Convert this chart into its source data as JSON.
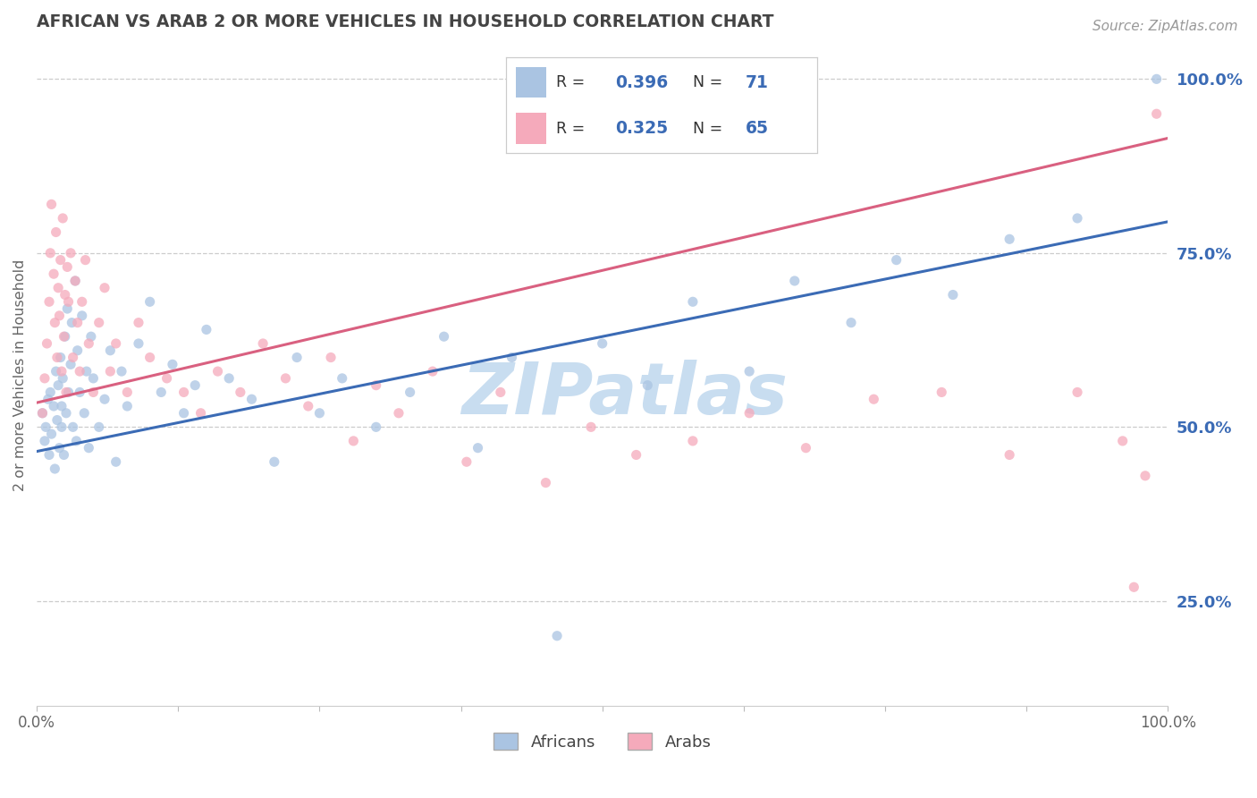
{
  "title": "AFRICAN VS ARAB 2 OR MORE VEHICLES IN HOUSEHOLD CORRELATION CHART",
  "source": "Source: ZipAtlas.com",
  "ylabel": "2 or more Vehicles in Household",
  "legend_r_african": "0.396",
  "legend_n_african": "71",
  "legend_r_arab": "0.325",
  "legend_n_arab": "65",
  "bottom_legend": [
    "Africans",
    "Arabs"
  ],
  "african_color": "#aac4e2",
  "arab_color": "#f5aabb",
  "african_line_color": "#3b6bb5",
  "arab_line_color": "#d96080",
  "african_trend_x0": 0.0,
  "african_trend_x1": 1.0,
  "african_trend_y0": 0.465,
  "african_trend_y1": 0.795,
  "arab_trend_x0": 0.0,
  "arab_trend_x1": 1.0,
  "arab_trend_y0": 0.535,
  "arab_trend_y1": 0.915,
  "xlim": [
    0.0,
    1.0
  ],
  "ylim": [
    0.1,
    1.05
  ],
  "bg_color": "#ffffff",
  "grid_color": "#cccccc",
  "title_color": "#444444",
  "right_label_color": "#3b6bb5",
  "marker_size": 65,
  "marker_alpha": 0.75,
  "watermark_text": "ZIPatlas",
  "watermark_color": "#c8ddf0",
  "africans_x": [
    0.005,
    0.007,
    0.008,
    0.01,
    0.011,
    0.012,
    0.013,
    0.015,
    0.016,
    0.017,
    0.018,
    0.019,
    0.02,
    0.021,
    0.022,
    0.022,
    0.023,
    0.024,
    0.025,
    0.026,
    0.027,
    0.028,
    0.03,
    0.031,
    0.032,
    0.034,
    0.035,
    0.036,
    0.038,
    0.04,
    0.042,
    0.044,
    0.046,
    0.048,
    0.05,
    0.055,
    0.06,
    0.065,
    0.07,
    0.075,
    0.08,
    0.09,
    0.1,
    0.11,
    0.12,
    0.13,
    0.14,
    0.15,
    0.17,
    0.19,
    0.21,
    0.23,
    0.25,
    0.27,
    0.3,
    0.33,
    0.36,
    0.39,
    0.42,
    0.46,
    0.5,
    0.54,
    0.58,
    0.63,
    0.67,
    0.72,
    0.76,
    0.81,
    0.86,
    0.92,
    0.99
  ],
  "africans_y": [
    0.52,
    0.48,
    0.5,
    0.54,
    0.46,
    0.55,
    0.49,
    0.53,
    0.44,
    0.58,
    0.51,
    0.56,
    0.47,
    0.6,
    0.5,
    0.53,
    0.57,
    0.46,
    0.63,
    0.52,
    0.67,
    0.55,
    0.59,
    0.65,
    0.5,
    0.71,
    0.48,
    0.61,
    0.55,
    0.66,
    0.52,
    0.58,
    0.47,
    0.63,
    0.57,
    0.5,
    0.54,
    0.61,
    0.45,
    0.58,
    0.53,
    0.62,
    0.68,
    0.55,
    0.59,
    0.52,
    0.56,
    0.64,
    0.57,
    0.54,
    0.45,
    0.6,
    0.52,
    0.57,
    0.5,
    0.55,
    0.63,
    0.47,
    0.6,
    0.2,
    0.62,
    0.56,
    0.68,
    0.58,
    0.71,
    0.65,
    0.74,
    0.69,
    0.77,
    0.8,
    1.0
  ],
  "arabs_x": [
    0.005,
    0.007,
    0.009,
    0.011,
    0.012,
    0.013,
    0.015,
    0.016,
    0.017,
    0.018,
    0.019,
    0.02,
    0.021,
    0.022,
    0.023,
    0.024,
    0.025,
    0.026,
    0.027,
    0.028,
    0.03,
    0.032,
    0.034,
    0.036,
    0.038,
    0.04,
    0.043,
    0.046,
    0.05,
    0.055,
    0.06,
    0.065,
    0.07,
    0.08,
    0.09,
    0.1,
    0.115,
    0.13,
    0.145,
    0.16,
    0.18,
    0.2,
    0.22,
    0.24,
    0.26,
    0.28,
    0.3,
    0.32,
    0.35,
    0.38,
    0.41,
    0.45,
    0.49,
    0.53,
    0.58,
    0.63,
    0.68,
    0.74,
    0.8,
    0.86,
    0.92,
    0.96,
    0.97,
    0.98,
    0.99
  ],
  "arabs_y": [
    0.52,
    0.57,
    0.62,
    0.68,
    0.75,
    0.82,
    0.72,
    0.65,
    0.78,
    0.6,
    0.7,
    0.66,
    0.74,
    0.58,
    0.8,
    0.63,
    0.69,
    0.55,
    0.73,
    0.68,
    0.75,
    0.6,
    0.71,
    0.65,
    0.58,
    0.68,
    0.74,
    0.62,
    0.55,
    0.65,
    0.7,
    0.58,
    0.62,
    0.55,
    0.65,
    0.6,
    0.57,
    0.55,
    0.52,
    0.58,
    0.55,
    0.62,
    0.57,
    0.53,
    0.6,
    0.48,
    0.56,
    0.52,
    0.58,
    0.45,
    0.55,
    0.42,
    0.5,
    0.46,
    0.48,
    0.52,
    0.47,
    0.54,
    0.55,
    0.46,
    0.55,
    0.48,
    0.27,
    0.43,
    0.95
  ]
}
